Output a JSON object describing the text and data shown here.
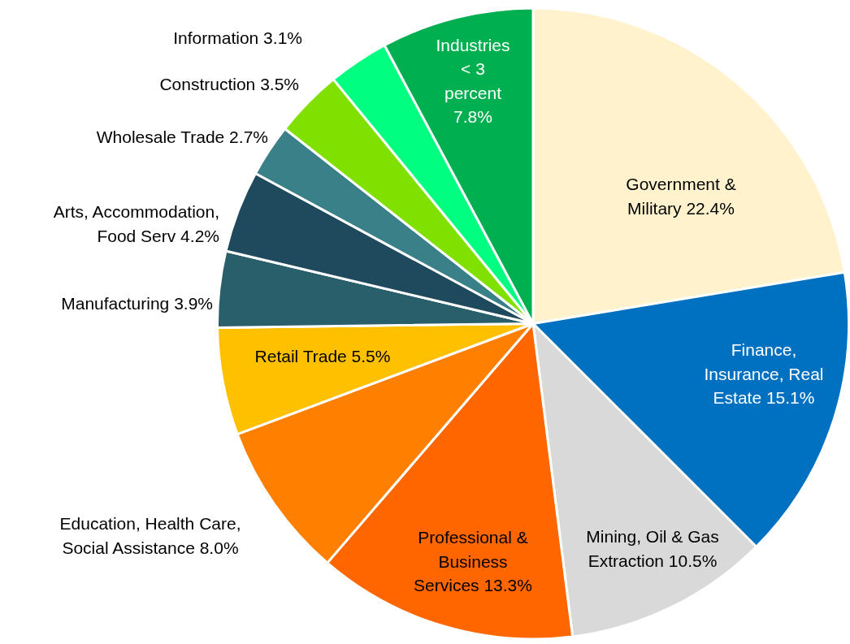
{
  "chart_data": {
    "type": "pie",
    "categories": [
      "Government & Military",
      "Finance, Insurance, Real Estate",
      "Mining, Oil & Gas Extraction",
      "Professional & Business Services",
      "Education, Health Care, Social Assistance",
      "Retail Trade",
      "Manufacturing",
      "Arts, Accommodation, Food Serv",
      "Wholesale Trade",
      "Construction",
      "Information",
      "Industries < 3 percent"
    ],
    "values": [
      22.4,
      15.1,
      10.5,
      13.3,
      8.0,
      5.5,
      3.9,
      4.2,
      2.7,
      3.5,
      3.1,
      7.8
    ],
    "value_labels": [
      "22.4%",
      "15.1%",
      "10.5%",
      "13.3%",
      "8.0%",
      "5.5%",
      "3.9%",
      "4.2%",
      "2.7%",
      "3.5%",
      "3.1%",
      "7.8%"
    ],
    "colors": [
      "#fff2cc",
      "#0070c0",
      "#d9d9d9",
      "#ff6600",
      "#ff8000",
      "#ffc000",
      "#285f6b",
      "#1f4a5e",
      "#3a8089",
      "#80e000",
      "#00ff80",
      "#00b050"
    ],
    "legend": false
  }
}
